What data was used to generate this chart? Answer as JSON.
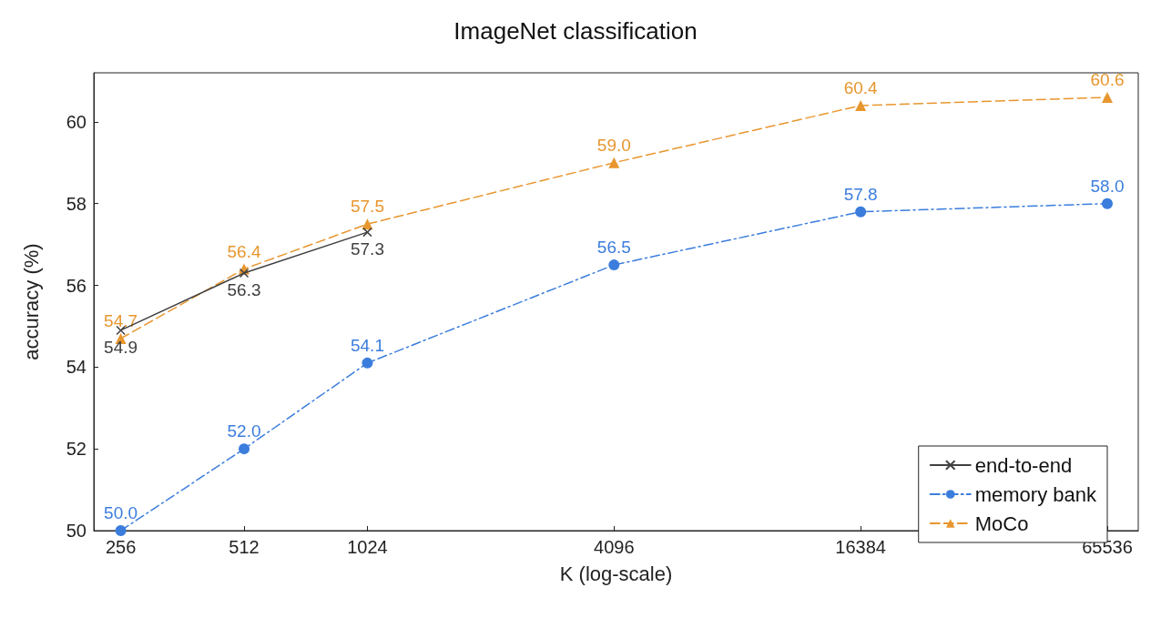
{
  "chart_data": {
    "type": "line",
    "title": "ImageNet classification",
    "xlabel": "K (log-scale)",
    "ylabel": "accuracy (%)",
    "log": "x",
    "xlim": [
      220,
      78000
    ],
    "xticks": [
      256,
      512,
      1024,
      4096,
      16384,
      65536
    ],
    "ylim": [
      50,
      61.2
    ],
    "yticks": [
      50,
      52,
      54,
      56,
      58,
      60
    ],
    "grid": false,
    "legend": "bottom right",
    "series": [
      {
        "name": "end-to-end",
        "color": "#404040",
        "marker": "cross",
        "line_style": "solid",
        "x": [
          256,
          512,
          1024
        ],
        "values": [
          54.9,
          56.3,
          57.3
        ],
        "value_labels": [
          "54.9",
          "56.3",
          "57.3"
        ]
      },
      {
        "name": "memory bank",
        "color": "#3b7ddd",
        "marker": "circle",
        "line_style": "dashdot",
        "x": [
          256,
          512,
          1024,
          4096,
          16384,
          65536
        ],
        "values": [
          50.0,
          52.0,
          54.1,
          56.5,
          57.8,
          58.0
        ],
        "value_labels": [
          "50.0",
          "52.0",
          "54.1",
          "56.5",
          "57.8",
          "58.0"
        ]
      },
      {
        "name": "MoCo",
        "color": "#e8962e",
        "marker": "triangle",
        "line_style": "dashed",
        "x": [
          256,
          512,
          1024,
          4096,
          16384,
          65536
        ],
        "values": [
          54.7,
          56.4,
          57.5,
          59.0,
          60.4,
          60.6
        ],
        "value_labels": [
          "54.7",
          "56.4",
          "57.5",
          "59.0",
          "60.4",
          "60.6"
        ]
      }
    ]
  }
}
